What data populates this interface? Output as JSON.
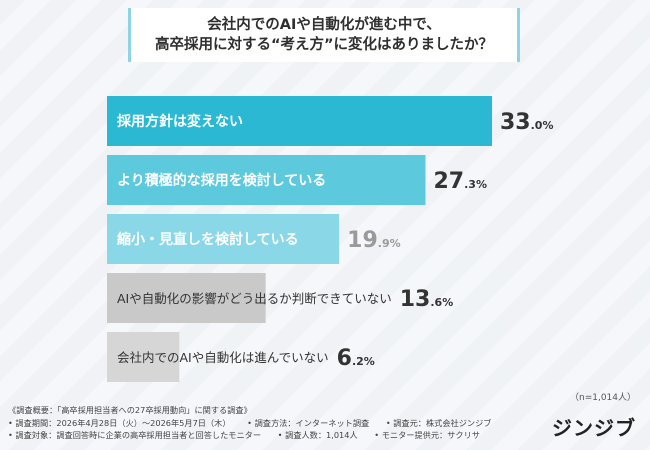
{
  "question": {
    "line1": "会社内でのAIや自動化が進む中で、",
    "line2": "高卒採用に対する“考え方”に変化はありましたか？"
  },
  "chart_data": {
    "type": "bar",
    "orientation": "horizontal",
    "categories": [
      "採用方針は変えない",
      "より積極的な採用を検討している",
      "縮小・見直しを検討している",
      "AIや自動化の影響がどう出るか判断できていない",
      "会社内でのAIや自動化は進んでいない"
    ],
    "values": [
      33.0,
      27.3,
      19.9,
      13.6,
      6.2
    ],
    "value_labels": [
      {
        "num": "33",
        "dec": ".0%"
      },
      {
        "num": "27",
        "dec": ".3%"
      },
      {
        "num": "19",
        "dec": ".9%"
      },
      {
        "num": "13",
        "dec": ".6%"
      },
      {
        "num": "6",
        "dec": ".2%"
      }
    ],
    "colors": [
      "#2bb8d3",
      "#5cc9dc",
      "#8ad8e7",
      "#c9c9c9",
      "#d6d6d6"
    ],
    "label_colors": [
      "#ffffff",
      "#ffffff",
      "#ffffff",
      "#333333",
      "#333333"
    ],
    "value_colors": [
      "#333333",
      "#333333",
      "#9a9a9a",
      "#333333",
      "#333333"
    ],
    "xlim": [
      0,
      33.0
    ]
  },
  "n_note": "（n=1,014人）",
  "footer": {
    "row1": [
      "《調査概要：「高卒採用担当者への27卒採用動向」に関する調査》"
    ],
    "row2": [
      "• 調査期間：2026年4月28日（火）〜2026年5月7日（木）",
      "• 調査方法：インターネット調査",
      "• 調査元：株式会社ジンジブ"
    ],
    "row3": [
      "• 調査対象：調査回答時に企業の高卒採用担当者と回答したモニター",
      "• 調査人数：1,014人",
      "• モニター提供元：サクリサ"
    ]
  },
  "logo": "ジンジブ"
}
